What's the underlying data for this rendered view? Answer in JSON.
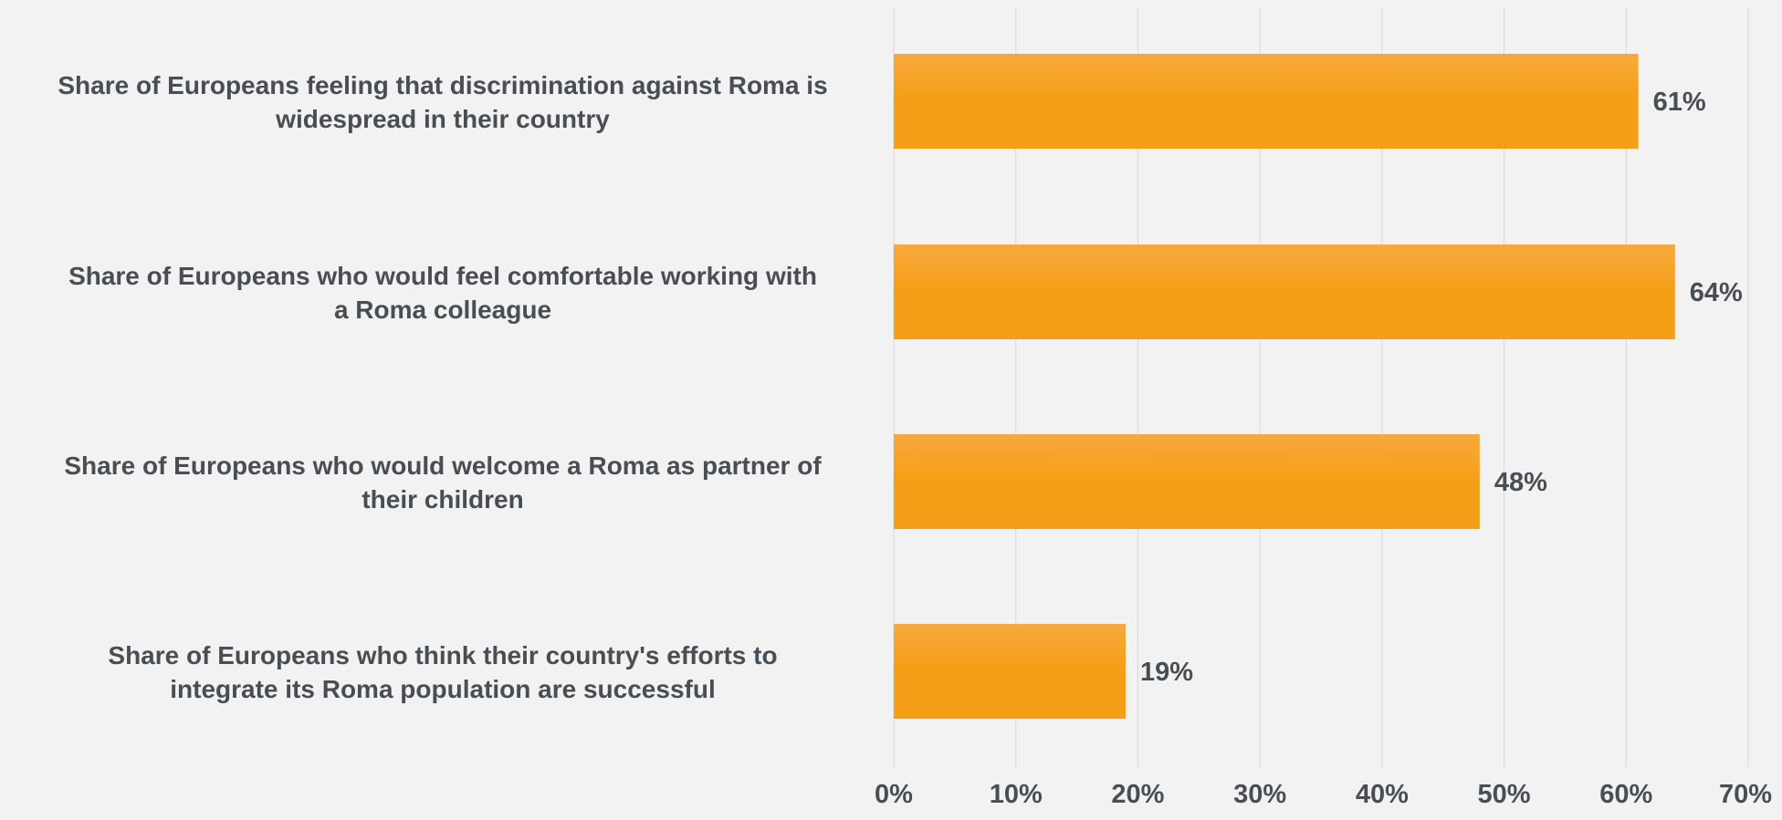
{
  "chart_data": {
    "type": "bar",
    "orientation": "horizontal",
    "categories": [
      [
        "Share of Europeans feeling that discrimination against Roma is",
        "widespread in their country"
      ],
      [
        "Share of Europeans who would feel comfortable working with",
        "a Roma colleague"
      ],
      [
        "Share of Europeans who would welcome a Roma as partner of",
        "their children"
      ],
      [
        "Share of Europeans who think their country's efforts to",
        "integrate its Roma population are successful"
      ]
    ],
    "values": [
      61,
      64,
      48,
      19
    ],
    "data_labels": [
      "61%",
      "64%",
      "48%",
      "19%"
    ],
    "xlim": [
      0,
      70
    ],
    "xticks": [
      0,
      10,
      20,
      30,
      40,
      50,
      60,
      70
    ],
    "xtick_labels": [
      "0%",
      "10%",
      "20%",
      "30%",
      "40%",
      "50%",
      "60%",
      "70%"
    ],
    "grid": "vertical",
    "legend": "none",
    "colors": {
      "bar_top": "#f6a93e",
      "bar_bottom": "#f59f19",
      "text": "#474e54",
      "grid": "#d9d9d9",
      "background": "#f2f2f2"
    }
  }
}
